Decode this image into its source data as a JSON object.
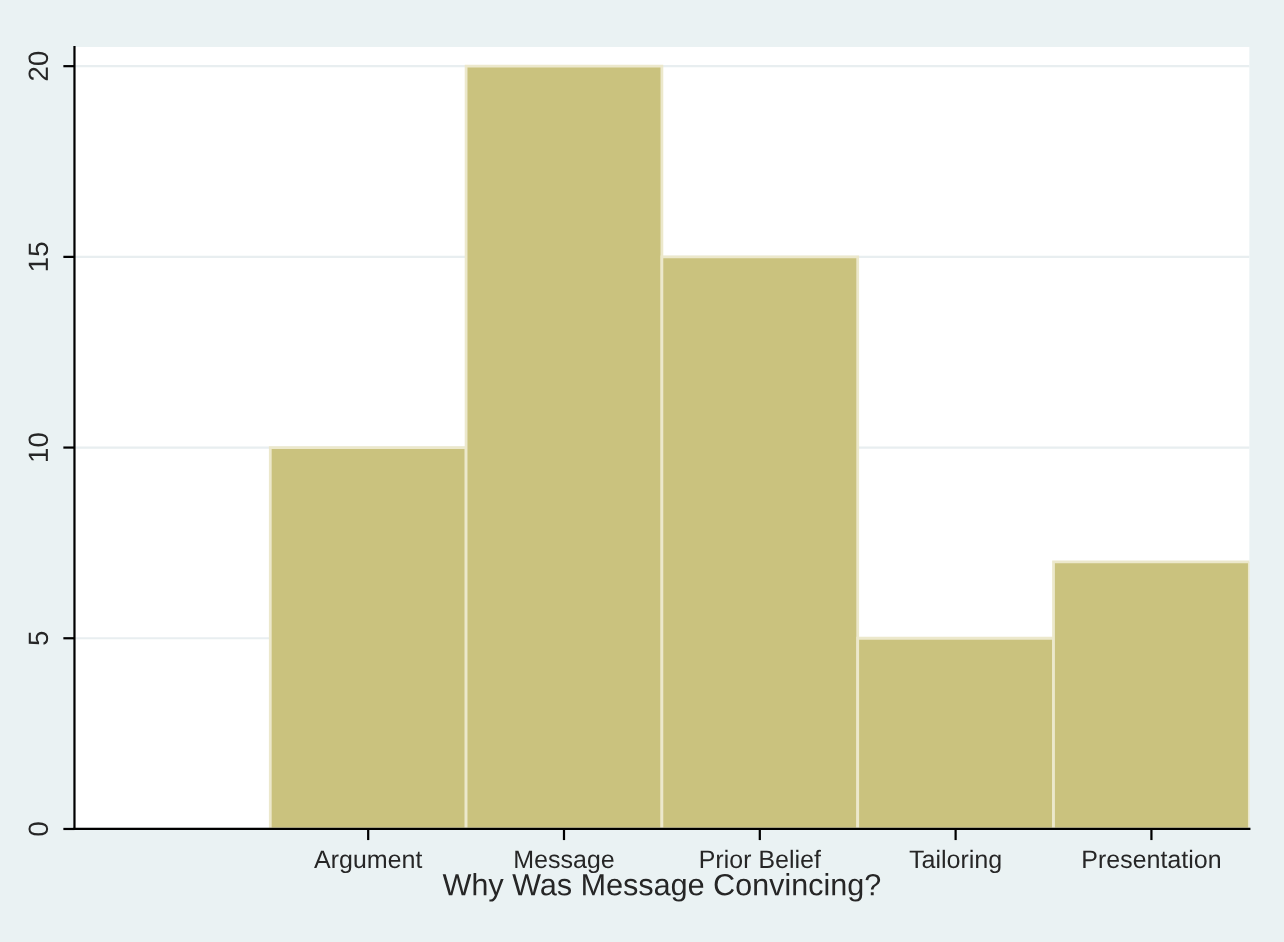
{
  "chart_data": {
    "type": "bar",
    "xlabel": "Why Was Message Convincing?",
    "categories": [
      null,
      "Argument",
      "Message",
      "Prior Belief",
      "Tailoring",
      "Presentation"
    ],
    "values": [
      null,
      10,
      20,
      15,
      5,
      7
    ],
    "color": "#cac27e",
    "ylim": [
      0,
      20.5
    ],
    "yticks": [
      0,
      5,
      10,
      15,
      20
    ],
    "grid": "y"
  }
}
